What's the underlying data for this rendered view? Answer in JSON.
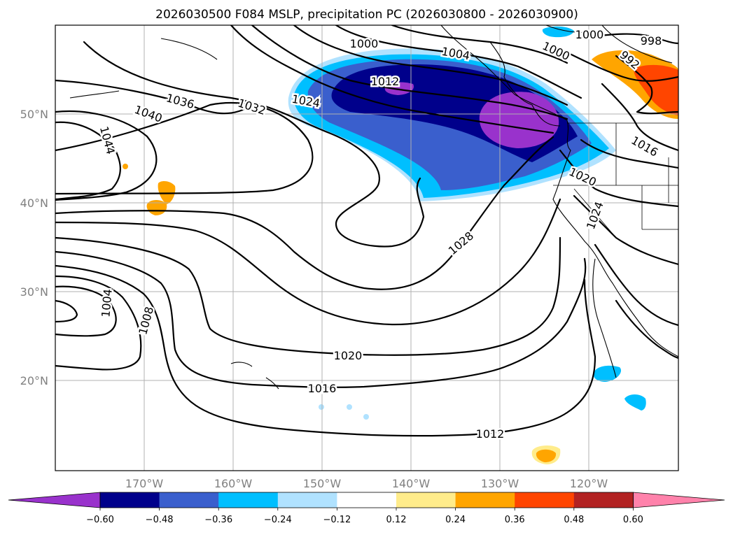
{
  "title": "2026030500 F084 MSLP, precipitation PC (2026030800 - 2026030900)",
  "map": {
    "lon_labels": [
      "170°W",
      "160°W",
      "150°W",
      "140°W",
      "130°W",
      "120°W"
    ],
    "lat_labels": [
      "50°N",
      "40°N",
      "30°N",
      "20°N"
    ],
    "isobar_labels": [
      "1000",
      "1000",
      "998",
      "1000",
      "992",
      "1004",
      "1012",
      "1024",
      "1032",
      "1036",
      "1040",
      "1044",
      "1016",
      "1020",
      "1024",
      "1028",
      "1004",
      "1008",
      "1020",
      "1016",
      "1012"
    ]
  },
  "colorbar": {
    "ticks": [
      "−0.60",
      "−0.48",
      "−0.36",
      "−0.24",
      "−0.12",
      "0.12",
      "0.24",
      "0.36",
      "0.48",
      "0.60"
    ],
    "colors": [
      "#9932cc",
      "#00008b",
      "#3a5fcd",
      "#00bfff",
      "#b0e2ff",
      "#ffffff",
      "#ffec8b",
      "#ffa500",
      "#ff4500",
      "#b22222",
      "#ff82ab"
    ]
  },
  "chart_data": {
    "type": "map",
    "title": "2026030500 F084 MSLP, precipitation PC (2026030800 - 2026030900)",
    "field_contours": "MSLP (hPa)",
    "field_filled": "precipitation PC",
    "lon_range": [
      -180,
      -110
    ],
    "lat_range": [
      10,
      60
    ],
    "isobar_values_shown": [
      992,
      998,
      1000,
      1004,
      1008,
      1012,
      1016,
      1020,
      1024,
      1028,
      1032,
      1036,
      1040,
      1044
    ],
    "colorbar_levels": [
      -0.6,
      -0.48,
      -0.36,
      -0.24,
      -0.12,
      0.12,
      0.24,
      0.36,
      0.48,
      0.6
    ]
  }
}
